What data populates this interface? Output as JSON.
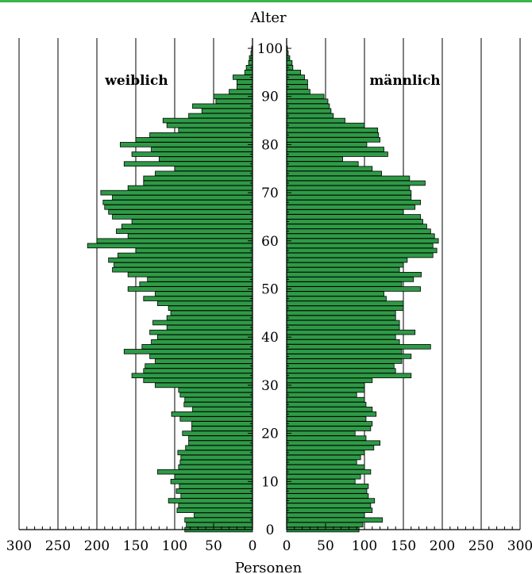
{
  "chart_data": {
    "type": "bar",
    "orientation": "horizontal-population-pyramid",
    "title": "Alter",
    "xlabel": "Personen",
    "ylabel": "Alter",
    "xlim": [
      0,
      300
    ],
    "ylim": [
      0,
      100
    ],
    "x_ticks": [
      "300",
      "250",
      "200",
      "150",
      "100",
      "50",
      "0"
    ],
    "x_ticks_right": [
      "0",
      "50",
      "100",
      "150",
      "200",
      "250",
      "300"
    ],
    "y_ticks": [
      "0",
      "10",
      "20",
      "30",
      "40",
      "50",
      "60",
      "70",
      "80",
      "90",
      "100"
    ],
    "grid": "vertical",
    "bar_color": "#2e9a46",
    "bar_edge_color": "#000000",
    "top_rule_color": "#3ab54a",
    "ages": [
      0,
      1,
      2,
      3,
      4,
      5,
      6,
      7,
      8,
      9,
      10,
      11,
      12,
      13,
      14,
      15,
      16,
      17,
      18,
      19,
      20,
      21,
      22,
      23,
      24,
      25,
      26,
      27,
      28,
      29,
      30,
      31,
      32,
      33,
      34,
      35,
      36,
      37,
      38,
      39,
      40,
      41,
      42,
      43,
      44,
      45,
      46,
      47,
      48,
      49,
      50,
      51,
      52,
      53,
      54,
      55,
      56,
      57,
      58,
      59,
      60,
      61,
      62,
      63,
      64,
      65,
      66,
      67,
      68,
      69,
      70,
      71,
      72,
      73,
      74,
      75,
      76,
      77,
      78,
      79,
      80,
      81,
      82,
      83,
      84,
      85,
      86,
      87,
      88,
      89,
      90,
      91,
      92,
      93,
      94,
      95,
      96,
      97,
      98,
      99,
      100
    ],
    "series": [
      {
        "name": "weiblich",
        "side": "left",
        "values": [
          87,
          85,
          87,
          75,
          97,
          95,
          108,
          92,
          98,
          94,
          105,
          100,
          122,
          95,
          93,
          92,
          96,
          86,
          82,
          82,
          90,
          78,
          78,
          93,
          104,
          77,
          88,
          87,
          93,
          95,
          125,
          140,
          155,
          140,
          138,
          125,
          132,
          165,
          142,
          130,
          122,
          132,
          110,
          128,
          110,
          105,
          108,
          122,
          140,
          125,
          160,
          145,
          135,
          160,
          180,
          178,
          185,
          173,
          150,
          212,
          200,
          160,
          175,
          168,
          155,
          180,
          185,
          190,
          192,
          180,
          195,
          160,
          140,
          140,
          125,
          100,
          165,
          120,
          155,
          130,
          170,
          150,
          132,
          95,
          110,
          115,
          82,
          65,
          77,
          47,
          50,
          30,
          20,
          20,
          25,
          10,
          8,
          5,
          4,
          2,
          1
        ]
      },
      {
        "name": "männlich",
        "side": "right",
        "values": [
          93,
          98,
          123,
          100,
          110,
          108,
          113,
          105,
          103,
          105,
          88,
          95,
          108,
          100,
          90,
          95,
          100,
          112,
          120,
          102,
          88,
          108,
          110,
          102,
          115,
          110,
          102,
          100,
          90,
          100,
          100,
          110,
          160,
          140,
          138,
          148,
          160,
          148,
          185,
          145,
          140,
          165,
          145,
          145,
          140,
          140,
          150,
          150,
          128,
          125,
          172,
          148,
          163,
          173,
          145,
          150,
          155,
          188,
          193,
          188,
          195,
          190,
          185,
          180,
          175,
          172,
          150,
          165,
          172,
          160,
          160,
          158,
          178,
          158,
          122,
          110,
          92,
          72,
          130,
          125,
          103,
          120,
          118,
          117,
          100,
          75,
          60,
          57,
          55,
          53,
          48,
          30,
          27,
          27,
          23,
          18,
          8,
          7,
          4,
          2,
          1
        ]
      }
    ],
    "legend": [
      "weiblich",
      "männlich"
    ]
  }
}
